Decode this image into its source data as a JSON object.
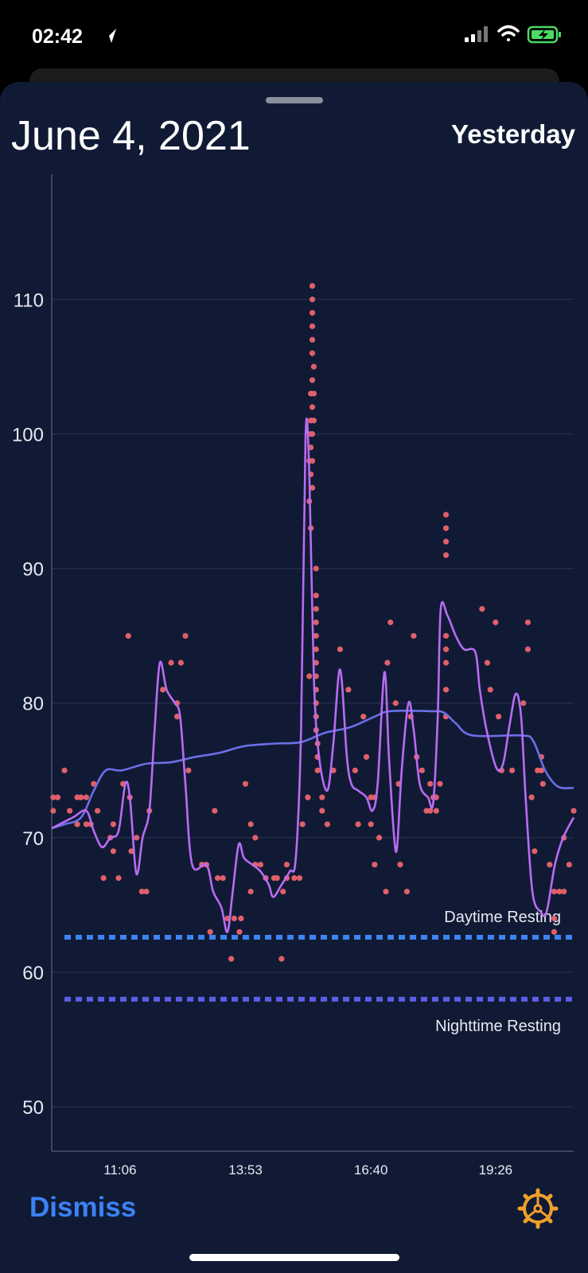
{
  "status_bar": {
    "time": "02:42"
  },
  "header": {
    "title": "June 4, 2021",
    "action": "Yesterday"
  },
  "chart_data": {
    "type": "line",
    "xlim": [
      575,
      1270
    ],
    "xticks": [
      {
        "value": 666,
        "label": "11:06"
      },
      {
        "value": 833,
        "label": "13:53"
      },
      {
        "value": 1000,
        "label": "16:40"
      },
      {
        "value": 1166,
        "label": "19:26"
      }
    ],
    "ylim": [
      46.7,
      119.3
    ],
    "yticks": [
      50,
      60,
      70,
      80,
      90,
      100,
      110
    ],
    "grid": true,
    "series": [
      {
        "type": "scatter",
        "color": "#e0606a",
        "x": [
          577,
          577,
          583,
          592,
          599,
          609,
          609,
          614,
          621,
          621,
          627,
          631,
          636,
          644,
          653,
          657,
          657,
          664,
          670,
          677,
          679,
          681,
          688,
          695,
          701,
          705,
          723,
          734,
          742,
          742,
          747,
          753,
          757,
          775,
          781,
          786,
          792,
          796,
          803,
          809,
          814,
          818,
          825,
          827,
          833,
          840,
          840,
          846,
          846,
          853,
          860,
          871,
          875,
          881,
          883,
          888,
          888,
          898,
          905,
          909,
          916,
          918,
          918,
          918,
          920,
          920,
          920,
          920,
          920,
          920,
          922,
          922,
          922,
          922,
          922,
          922,
          922,
          922,
          922,
          922,
          922,
          924,
          924,
          924,
          927,
          927,
          927,
          927,
          927,
          927,
          927,
          927,
          927,
          927,
          927,
          927,
          929,
          929,
          929,
          935,
          935,
          942,
          950,
          959,
          970,
          979,
          983,
          990,
          994,
          1000,
          1000,
          1005,
          1005,
          1011,
          1020,
          1022,
          1026,
          1033,
          1037,
          1039,
          1048,
          1053,
          1057,
          1061,
          1068,
          1074,
          1079,
          1079,
          1083,
          1087,
          1087,
          1092,
          1100,
          1100,
          1100,
          1100,
          1100,
          1100,
          1100,
          1100,
          1100,
          1148,
          1155,
          1159,
          1166,
          1170,
          1174,
          1188,
          1203,
          1209,
          1209,
          1214,
          1218,
          1222,
          1227,
          1227,
          1229,
          1238,
          1244,
          1244,
          1244,
          1251,
          1257,
          1257,
          1264,
          1270
        ],
        "values": [
          72,
          73,
          73,
          75,
          72,
          73,
          71,
          73,
          73,
          71,
          71,
          74,
          72,
          67,
          70,
          69,
          71,
          67,
          74,
          85,
          73,
          69,
          70,
          66,
          66,
          72,
          81,
          83,
          80,
          79,
          83,
          85,
          75,
          68,
          68,
          63,
          72,
          67,
          67,
          64,
          61,
          64,
          63,
          64,
          74,
          71,
          66,
          68,
          70,
          68,
          67,
          67,
          67,
          61,
          66,
          67,
          68,
          67,
          67,
          71,
          73,
          82,
          95,
          98,
          93,
          97,
          99,
          100,
          101,
          103,
          96,
          98,
          100,
          102,
          104,
          106,
          107,
          108,
          109,
          110,
          111,
          101,
          103,
          105,
          90,
          88,
          87,
          86,
          85,
          84,
          83,
          82,
          81,
          80,
          79,
          78,
          77,
          76,
          75,
          73,
          72,
          71,
          75,
          84,
          81,
          75,
          71,
          79,
          76,
          73,
          71,
          73,
          68,
          70,
          66,
          83,
          86,
          80,
          74,
          68,
          66,
          79,
          85,
          76,
          75,
          72,
          74,
          72,
          73,
          72,
          73,
          74,
          79,
          81,
          83,
          84,
          85,
          91,
          92,
          93,
          94,
          87,
          83,
          81,
          86,
          79,
          75,
          75,
          80,
          86,
          84,
          73,
          69,
          75,
          76,
          75,
          74,
          68,
          66,
          64,
          63,
          66,
          66,
          70,
          68,
          72
        ]
      },
      {
        "type": "line",
        "color": "#6b6fe6",
        "x": [
          575,
          592,
          614,
          631,
          647,
          668,
          701,
          733,
          766,
          798,
          831,
          874,
          907,
          939,
          972,
          1005,
          1026,
          1080,
          1097,
          1113,
          1135,
          1200,
          1216,
          1232,
          1249,
          1270
        ],
        "values": [
          70.7,
          71,
          71.5,
          73.5,
          75,
          75,
          75.5,
          75.6,
          76,
          76.3,
          76.8,
          77,
          77.1,
          77.8,
          78.2,
          79,
          79.4,
          79.4,
          79.3,
          78.5,
          77.6,
          77.6,
          77.2,
          75,
          73.8,
          73.7
        ]
      },
      {
        "type": "line",
        "color": "#b76cf2",
        "x": [
          575,
          603,
          621,
          631,
          642,
          653,
          664,
          673,
          679,
          686,
          690,
          696,
          705,
          712,
          719,
          728,
          739,
          746,
          753,
          762,
          781,
          790,
          801,
          809,
          816,
          824,
          831,
          842,
          853,
          864,
          870,
          881,
          892,
          900,
          907,
          913,
          918,
          924,
          931,
          942,
          950,
          959,
          968,
          974,
          983,
          994,
          1002,
          1009,
          1018,
          1024,
          1031,
          1035,
          1041,
          1050,
          1057,
          1065,
          1076,
          1083,
          1089,
          1093,
          1102,
          1113,
          1124,
          1139,
          1145,
          1154,
          1167,
          1176,
          1185,
          1193,
          1200,
          1206,
          1215,
          1226,
          1234,
          1245,
          1256,
          1270
        ],
        "values": [
          70.7,
          71.5,
          72,
          70.5,
          69.3,
          70,
          70.5,
          74,
          73,
          68,
          67.5,
          70,
          72,
          78,
          83,
          81,
          80,
          79,
          74,
          68,
          68,
          66,
          64.8,
          63,
          66,
          69.5,
          68.5,
          68,
          67.5,
          66.5,
          65.6,
          66.5,
          67.5,
          68.5,
          78,
          99.8,
          97,
          82,
          76,
          73.5,
          77,
          82.5,
          76,
          74,
          73.5,
          73,
          72,
          74,
          82.3,
          76,
          70,
          69.4,
          75,
          80,
          78,
          74,
          73,
          72.6,
          79,
          87,
          86.5,
          85,
          84,
          83.8,
          81,
          78,
          75.2,
          75.5,
          78.5,
          80.7,
          79,
          73,
          66,
          64.5,
          64.5,
          68,
          70,
          71.5
        ]
      }
    ],
    "reference_lines": [
      {
        "label": "Daytime Resting",
        "value": 62.6,
        "color": "#3d84f2",
        "label_position": "above"
      },
      {
        "label": "Nighttime Resting",
        "value": 58,
        "color": "#5b5ee6",
        "label_position": "below"
      }
    ]
  },
  "footer": {
    "dismiss": "Dismiss"
  }
}
